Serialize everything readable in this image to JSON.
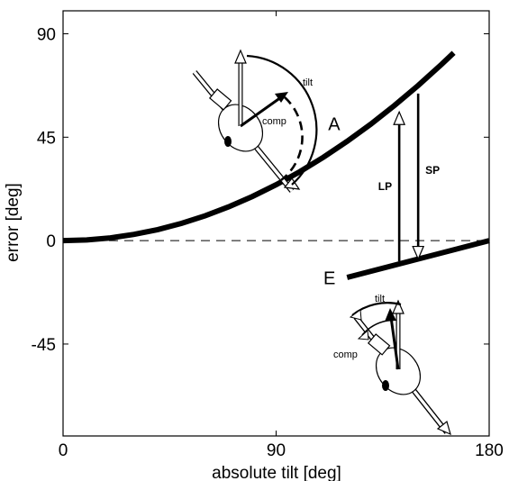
{
  "chart_data": {
    "type": "line",
    "xlabel": "absolute tilt [deg]",
    "ylabel": "error [deg]",
    "xlim": [
      0,
      180
    ],
    "ylim": [
      -85,
      100
    ],
    "x_ticks": [
      0,
      90,
      180
    ],
    "x_tick_labels": [
      "0",
      "90",
      "180"
    ],
    "y_ticks": [
      90,
      45,
      0,
      -45
    ],
    "y_tick_labels": [
      "90",
      "45",
      "0",
      "-45"
    ],
    "grid": false,
    "reference_line": {
      "y": 0,
      "style": "dashed"
    },
    "series": [
      {
        "name": "A",
        "x": [
          0,
          10,
          20,
          30,
          40,
          50,
          60,
          70,
          80,
          90,
          100,
          110,
          120,
          130,
          140,
          150,
          160,
          165
        ],
        "y": [
          0,
          0.3,
          1.2,
          2.7,
          4.8,
          7.5,
          10.8,
          14.7,
          19.2,
          24.3,
          30.0,
          36.3,
          43.2,
          50.7,
          58.8,
          67.5,
          76.8,
          81.7
        ]
      },
      {
        "name": "E",
        "x": [
          120,
          180
        ],
        "y": [
          -16,
          0
        ]
      }
    ],
    "annotations": [
      {
        "label": "LP",
        "x": 142,
        "y_from": -9,
        "y_to": 56,
        "direction": "up"
      },
      {
        "label": "SP",
        "x": 150,
        "y_from": 64,
        "y_to": -8,
        "direction": "down"
      }
    ],
    "insets": [
      {
        "tilt_label": "tilt",
        "comp_label": "comp"
      },
      {
        "tilt_label": "tilt",
        "comp_label": "comp"
      }
    ]
  }
}
